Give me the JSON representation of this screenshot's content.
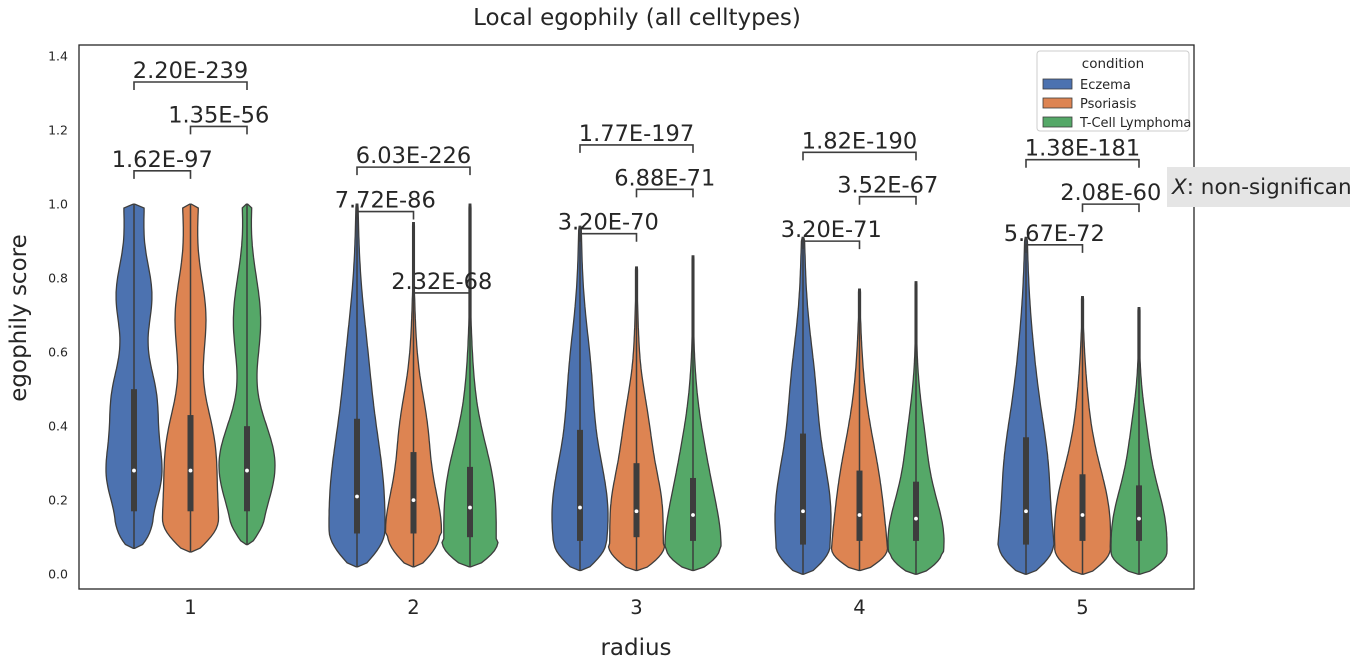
{
  "chart_data": {
    "type": "violin",
    "title": "Local egophily (all celltypes)",
    "xlabel": "radius",
    "ylabel": "egophily score",
    "ylim": [
      -0.04,
      1.43
    ],
    "grid": false,
    "categories": [
      "1",
      "2",
      "3",
      "4",
      "5"
    ],
    "yticks": [
      "0.0",
      "0.2",
      "0.4",
      "0.6",
      "0.8",
      "1.0",
      "1.2",
      "1.4"
    ],
    "legend": {
      "title": "condition",
      "placement": "top-right",
      "entries": [
        "Eczema",
        "Psoriasis",
        "T-Cell Lymphoma"
      ]
    },
    "colors": {
      "Eczema": "#4c72b0",
      "Psoriasis": "#dd8452",
      "T-Cell Lymphoma": "#55a868",
      "outline": "#3d3d3d"
    },
    "series": [
      {
        "name": "Eczema",
        "median": [
          0.28,
          0.21,
          0.18,
          0.17,
          0.17
        ],
        "q1": [
          0.17,
          0.11,
          0.09,
          0.08,
          0.08
        ],
        "q3": [
          0.5,
          0.42,
          0.39,
          0.38,
          0.37
        ],
        "min": [
          0.07,
          0.02,
          0.01,
          0.0,
          0.0
        ],
        "max": [
          1.0,
          1.0,
          0.94,
          0.91,
          0.91
        ]
      },
      {
        "name": "Psoriasis",
        "median": [
          0.28,
          0.2,
          0.17,
          0.16,
          0.16
        ],
        "q1": [
          0.17,
          0.11,
          0.1,
          0.09,
          0.09
        ],
        "q3": [
          0.43,
          0.33,
          0.3,
          0.28,
          0.27
        ],
        "min": [
          0.06,
          0.02,
          0.01,
          0.01,
          0.0
        ],
        "max": [
          1.0,
          0.95,
          0.83,
          0.77,
          0.75
        ]
      },
      {
        "name": "T-Cell Lymphoma",
        "median": [
          0.28,
          0.18,
          0.16,
          0.15,
          0.15
        ],
        "q1": [
          0.17,
          0.1,
          0.09,
          0.09,
          0.09
        ],
        "q3": [
          0.4,
          0.29,
          0.26,
          0.25,
          0.24
        ],
        "min": [
          0.08,
          0.02,
          0.01,
          0.0,
          0.0
        ],
        "max": [
          1.0,
          1.0,
          0.86,
          0.79,
          0.72
        ]
      }
    ],
    "annotations": [
      {
        "group": "1",
        "from": "Eczema",
        "to": "Psoriasis",
        "y": 1.09,
        "label": "1.62E-97"
      },
      {
        "group": "1",
        "from": "Psoriasis",
        "to": "T-Cell Lymphoma",
        "y": 1.21,
        "label": "1.35E-56"
      },
      {
        "group": "1",
        "from": "Eczema",
        "to": "T-Cell Lymphoma",
        "y": 1.33,
        "label": "2.20E-239"
      },
      {
        "group": "2",
        "from": "Eczema",
        "to": "Psoriasis",
        "y": 0.98,
        "label": "7.72E-86"
      },
      {
        "group": "2",
        "from": "Psoriasis",
        "to": "T-Cell Lymphoma",
        "y": 0.76,
        "label": "2.32E-68"
      },
      {
        "group": "2",
        "from": "Eczema",
        "to": "T-Cell Lymphoma",
        "y": 1.1,
        "label": "6.03E-226"
      },
      {
        "group": "3",
        "from": "Eczema",
        "to": "Psoriasis",
        "y": 0.92,
        "label": "3.20E-70"
      },
      {
        "group": "3",
        "from": "Psoriasis",
        "to": "T-Cell Lymphoma",
        "y": 1.04,
        "label": "6.88E-71"
      },
      {
        "group": "3",
        "from": "Eczema",
        "to": "T-Cell Lymphoma",
        "y": 1.16,
        "label": "1.77E-197"
      },
      {
        "group": "4",
        "from": "Eczema",
        "to": "Psoriasis",
        "y": 0.9,
        "label": "3.20E-71"
      },
      {
        "group": "4",
        "from": "Psoriasis",
        "to": "T-Cell Lymphoma",
        "y": 1.02,
        "label": "3.52E-67"
      },
      {
        "group": "4",
        "from": "Eczema",
        "to": "T-Cell Lymphoma",
        "y": 1.14,
        "label": "1.82E-190"
      },
      {
        "group": "5",
        "from": "Eczema",
        "to": "Psoriasis",
        "y": 0.89,
        "label": "5.67E-72"
      },
      {
        "group": "5",
        "from": "Psoriasis",
        "to": "T-Cell Lymphoma",
        "y": 1.0,
        "label": "2.08E-60"
      },
      {
        "group": "5",
        "from": "Eczema",
        "to": "T-Cell Lymphoma",
        "y": 1.12,
        "label": "1.38E-181"
      }
    ],
    "note": {
      "symbol": "X",
      "text": ": non-significant",
      "background": "#e5e5e5"
    }
  }
}
